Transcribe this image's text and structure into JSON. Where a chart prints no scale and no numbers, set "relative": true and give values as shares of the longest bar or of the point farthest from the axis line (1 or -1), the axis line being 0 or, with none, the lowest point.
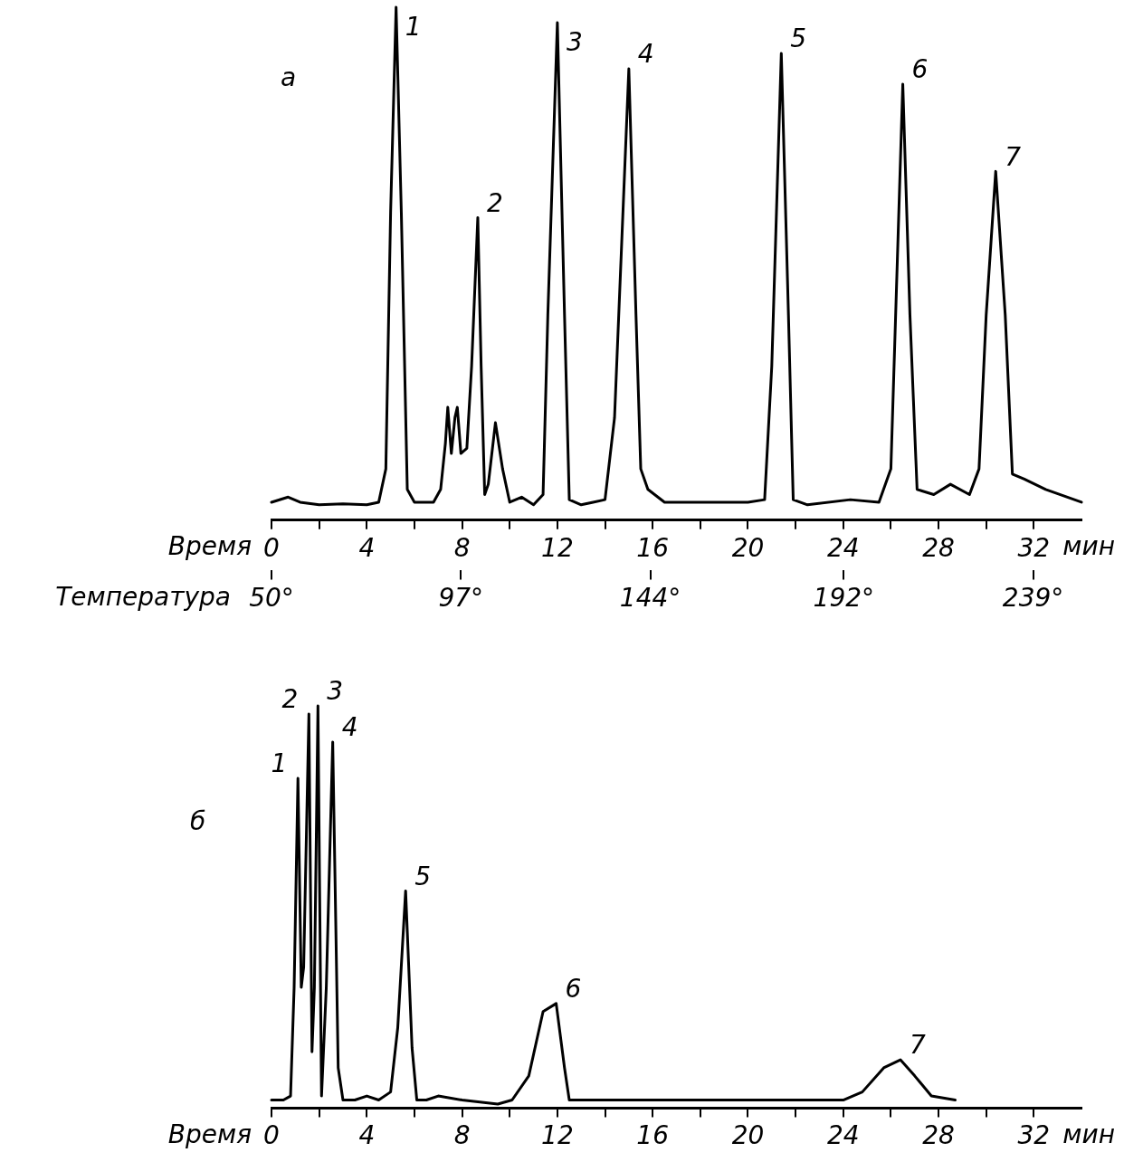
{
  "chart_data": [
    {
      "type": "line",
      "title": "а",
      "xlabel": "Время",
      "x2label": "Температура",
      "relative": true,
      "xlim": [
        0,
        34
      ],
      "xticks": [
        0,
        {
          "value": 2,
          "label": null
        },
        4,
        {
          "value": 6,
          "label": null
        },
        8,
        {
          "value": 10,
          "label": null
        },
        12,
        {
          "value": 14,
          "label": null
        },
        16,
        {
          "value": 18,
          "label": null
        },
        20,
        {
          "value": 22,
          "label": null
        },
        24,
        {
          "value": 26,
          "label": null
        },
        28,
        {
          "value": 30,
          "label": null
        },
        32
      ],
      "x2lim": [
        50,
        251
      ],
      "x2ticks": [
        {
          "value": 50,
          "label": "50°"
        },
        {
          "value": 97,
          "label": "97°"
        },
        {
          "value": 144,
          "label": "144°"
        },
        {
          "value": 192,
          "label": "192°"
        },
        {
          "value": 239,
          "label": "239°"
        }
      ],
      "grid": false,
      "legend": false,
      "marker": "none",
      "line_style": "solid",
      "series": [
        {
          "color": "#000000",
          "x": [
            0,
            0.7,
            1.2,
            2,
            3,
            4,
            4.5,
            4.8,
            5.0,
            5.23,
            5.45,
            5.7,
            6,
            6.8,
            7.1,
            7.3,
            7.4,
            7.55,
            7.7,
            7.8,
            7.95,
            8.2,
            8.4,
            8.66,
            8.8,
            8.95,
            9.1,
            9.4,
            9.7,
            10.0,
            10.5,
            11.0,
            11.4,
            11.6,
            12.0,
            12.3,
            12.5,
            13.0,
            13.5,
            14.0,
            14.4,
            15.0,
            15.3,
            15.5,
            15.8,
            16.5,
            18,
            20,
            20.7,
            21.0,
            21.4,
            21.7,
            21.9,
            22.5,
            24.3,
            25.5,
            26.0,
            26.5,
            26.8,
            27.1,
            27.8,
            28.5,
            29.3,
            29.7,
            30.0,
            30.4,
            30.8,
            31.1,
            31.6,
            32.5,
            34.0
          ],
          "values": [
            0.035,
            0.045,
            0.035,
            0.03,
            0.032,
            0.03,
            0.035,
            0.1,
            0.6,
            1.0,
            0.6,
            0.06,
            0.035,
            0.035,
            0.06,
            0.15,
            0.22,
            0.13,
            0.2,
            0.22,
            0.13,
            0.14,
            0.3,
            0.59,
            0.3,
            0.05,
            0.07,
            0.19,
            0.1,
            0.035,
            0.045,
            0.03,
            0.05,
            0.4,
            0.97,
            0.4,
            0.04,
            0.03,
            0.035,
            0.04,
            0.2,
            0.88,
            0.4,
            0.1,
            0.06,
            0.035,
            0.035,
            0.035,
            0.04,
            0.3,
            0.91,
            0.4,
            0.04,
            0.03,
            0.04,
            0.035,
            0.1,
            0.85,
            0.4,
            0.06,
            0.05,
            0.07,
            0.05,
            0.1,
            0.4,
            0.68,
            0.4,
            0.09,
            0.08,
            0.06,
            0.035
          ]
        }
      ],
      "annotations": [
        {
          "text": "1",
          "x": 5.23,
          "y": 1.0
        },
        {
          "text": "2",
          "x": 8.66,
          "y": 0.59
        },
        {
          "text": "3",
          "x": 12.0,
          "y": 0.97
        },
        {
          "text": "4",
          "x": 15.0,
          "y": 0.88
        },
        {
          "text": "5",
          "x": 21.4,
          "y": 0.91
        },
        {
          "text": "6",
          "x": 26.5,
          "y": 0.85
        },
        {
          "text": "7",
          "x": 30.4,
          "y": 0.68
        },
        "мин"
      ]
    },
    {
      "type": "line",
      "title": "б",
      "xlabel": "Время",
      "relative": true,
      "xlim": [
        0,
        34
      ],
      "xticks": [
        0,
        {
          "value": 2,
          "label": null
        },
        4,
        {
          "value": 6,
          "label": null
        },
        8,
        {
          "value": 10,
          "label": null
        },
        12,
        {
          "value": 14,
          "label": null
        },
        16,
        {
          "value": 18,
          "label": null
        },
        20,
        {
          "value": 22,
          "label": null
        },
        24,
        {
          "value": 26,
          "label": null
        },
        28,
        {
          "value": 30,
          "label": null
        },
        32
      ],
      "grid": false,
      "legend": false,
      "marker": "none",
      "line_style": "solid",
      "series": [
        {
          "color": "#000000",
          "x": [
            0,
            0.5,
            0.8,
            0.95,
            1.11,
            1.25,
            1.35,
            1.57,
            1.7,
            1.8,
            1.95,
            2.1,
            2.3,
            2.57,
            2.8,
            3.0,
            3.5,
            4.0,
            4.5,
            5.0,
            5.3,
            5.63,
            5.9,
            6.1,
            6.5,
            7.0,
            8.0,
            9.5,
            10.1,
            10.8,
            11.4,
            11.95,
            12.3,
            12.5,
            16,
            20,
            24,
            24.8,
            25.7,
            26.4,
            27.0,
            27.7,
            28.7
          ],
          "values": [
            0.02,
            0.02,
            0.03,
            0.3,
            0.82,
            0.3,
            0.35,
            0.98,
            0.14,
            0.3,
            1.0,
            0.03,
            0.3,
            0.91,
            0.1,
            0.02,
            0.02,
            0.03,
            0.02,
            0.04,
            0.2,
            0.54,
            0.15,
            0.02,
            0.02,
            0.03,
            0.02,
            0.01,
            0.02,
            0.08,
            0.24,
            0.26,
            0.1,
            0.02,
            0.02,
            0.02,
            0.02,
            0.04,
            0.1,
            0.12,
            0.08,
            0.03,
            0.02
          ]
        }
      ],
      "annotations": [
        {
          "text": "1",
          "x": 1.11,
          "y": 0.82
        },
        {
          "text": "2",
          "x": 1.57,
          "y": 0.98
        },
        {
          "text": "3",
          "x": 1.95,
          "y": 1.0
        },
        {
          "text": "4",
          "x": 2.57,
          "y": 0.91
        },
        {
          "text": "5",
          "x": 5.63,
          "y": 0.54
        },
        {
          "text": "6",
          "x": 11.95,
          "y": 0.26
        },
        {
          "text": "7",
          "x": 26.4,
          "y": 0.12
        },
        "мин"
      ]
    }
  ]
}
